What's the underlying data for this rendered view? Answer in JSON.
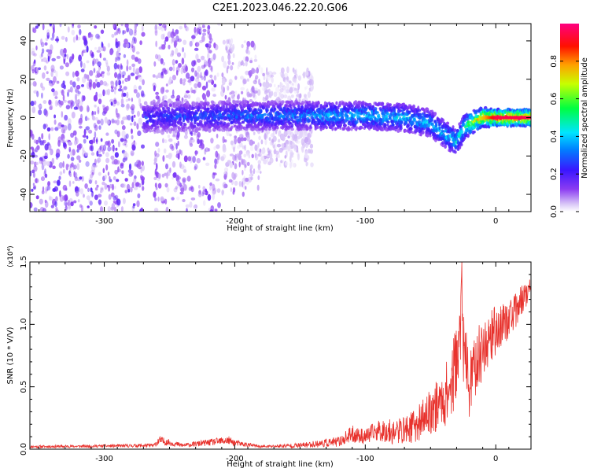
{
  "title": "C2E1.2023.046.22.20.G06",
  "chart_data": [
    {
      "type": "heatmap",
      "title": "C2E1.2023.046.22.20.G06",
      "xlabel": "Height of straight line (km)",
      "ylabel": "Frequency (Hz)",
      "xlim": [
        -357,
        27
      ],
      "ylim": [
        -49,
        49
      ],
      "x_ticks": [
        -300,
        -200,
        -100,
        0
      ],
      "y_ticks": [
        -40,
        -20,
        0,
        20,
        40
      ],
      "x_tick_labels": [
        "-300",
        "-200",
        "-100",
        "0"
      ],
      "y_tick_labels": [
        "-40",
        "-20",
        "0",
        "20",
        "40"
      ],
      "grid": false,
      "colorbar": {
        "label": "Normalized spectral amplitude",
        "range": [
          0,
          1
        ],
        "ticks": [
          0,
          0.2,
          0.4,
          0.6,
          0.8
        ],
        "tick_labels": [
          "0.0",
          "0.2",
          "0.4",
          "0.6",
          "0.8"
        ],
        "colormap": "rainbow (white-lavender → violet → blue → cyan → green → yellow → red → magenta)"
      },
      "bands": [
        {
          "x_start": -357,
          "x_end": -270,
          "amplitude": 0.15,
          "freq_spread": 49
        },
        {
          "x_start": -262,
          "x_end": -212,
          "amplitude": 0.12,
          "freq_spread": 49
        },
        {
          "x_start": -210,
          "x_end": -180,
          "amplitude": 0.08,
          "freq_spread": 40
        },
        {
          "x_start": -180,
          "x_end": -140,
          "amplitude": 0.05,
          "freq_spread": 25
        }
      ],
      "ridge": [
        {
          "x": -270,
          "freq": 0,
          "amplitude": 0.25
        },
        {
          "x": -200,
          "freq": 1,
          "amplitude": 0.3
        },
        {
          "x": -150,
          "freq": 1,
          "amplitude": 0.35
        },
        {
          "x": -100,
          "freq": 1,
          "amplitude": 0.4
        },
        {
          "x": -70,
          "freq": 0,
          "amplitude": 0.4
        },
        {
          "x": -50,
          "freq": -3,
          "amplitude": 0.4
        },
        {
          "x": -40,
          "freq": -8,
          "amplitude": 0.4
        },
        {
          "x": -30,
          "freq": -13,
          "amplitude": 0.45
        },
        {
          "x": -25,
          "freq": -6,
          "amplitude": 0.5
        },
        {
          "x": -20,
          "freq": -3,
          "amplitude": 0.6
        },
        {
          "x": -10,
          "freq": 0,
          "amplitude": 0.75
        },
        {
          "x": 0,
          "freq": 0,
          "amplitude": 0.95
        },
        {
          "x": 27,
          "freq": 0,
          "amplitude": 0.95
        }
      ]
    },
    {
      "type": "line",
      "xlabel": "Height of straight line (km)",
      "ylabel": "SNR (10 * V/V)",
      "y_multiplier": "(x10⁴)",
      "xlim": [
        -357,
        27
      ],
      "ylim": [
        0,
        15000
      ],
      "x_ticks": [
        -300,
        -200,
        -100,
        0
      ],
      "y_ticks": [
        0,
        5000,
        10000,
        15000
      ],
      "x_tick_labels": [
        "-300",
        "-200",
        "-100",
        "0"
      ],
      "y_tick_labels": [
        "0.0",
        "0.5",
        "1.0",
        "1.5"
      ],
      "grid": false,
      "color": "#e8322d",
      "series": [
        {
          "x": [
            -357,
            -300,
            -262,
            -258,
            -240,
            -205,
            -200,
            -180,
            -150,
            -120,
            -110,
            -100,
            -90,
            -80,
            -70,
            -60,
            -50,
            -40,
            -33,
            -30,
            -27,
            -26,
            -25,
            -20,
            -15,
            -10,
            -5,
            0,
            5,
            10,
            15,
            20,
            27
          ],
          "y": [
            200,
            250,
            300,
            700,
            300,
            700,
            500,
            200,
            300,
            600,
            1200,
            1000,
            1500,
            1400,
            1500,
            2000,
            3000,
            4000,
            5500,
            7500,
            8500,
            15000,
            8000,
            5000,
            7000,
            8000,
            9000,
            9500,
            10000,
            10500,
            11000,
            12000,
            13000
          ],
          "noise": [
            100,
            120,
            150,
            350,
            150,
            350,
            250,
            100,
            200,
            400,
            700,
            600,
            900,
            1000,
            1100,
            1400,
            1800,
            2400,
            2800,
            3200,
            3500,
            3000,
            3000,
            2800,
            2600,
            2400,
            2200,
            2000,
            1800,
            1600,
            1400,
            1200,
            900
          ]
        }
      ]
    }
  ]
}
